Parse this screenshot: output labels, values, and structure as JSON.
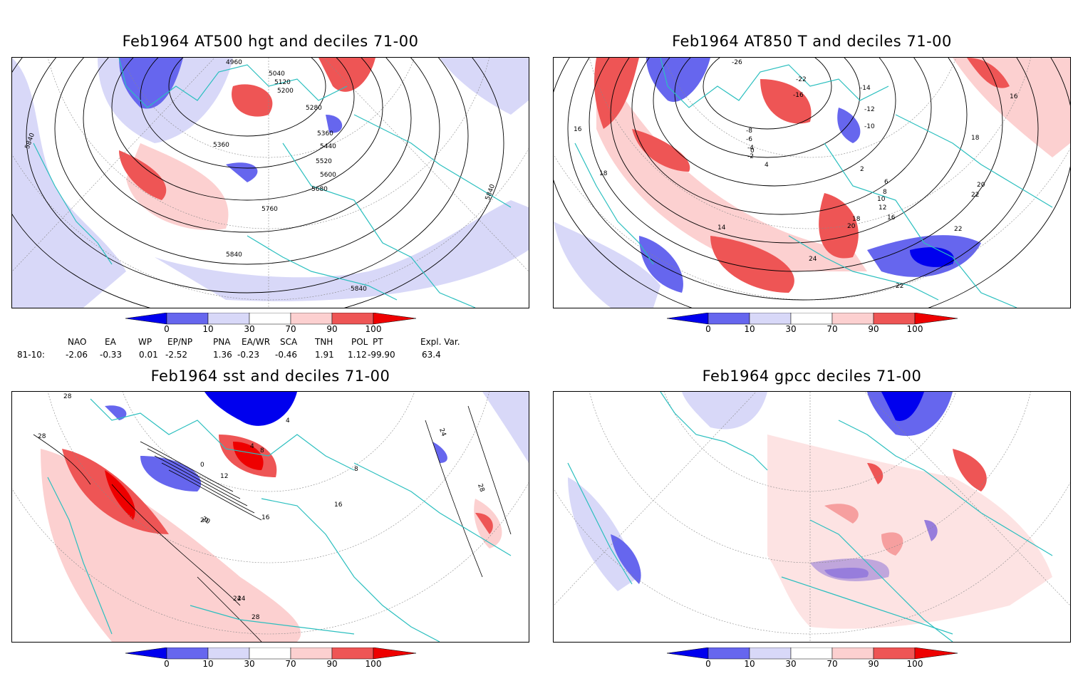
{
  "panels": [
    {
      "title": "Feb1964 AT500 hgt and deciles 71-00",
      "contour_labels": [
        "4960",
        "5040",
        "5120",
        "5200",
        "5280",
        "5360",
        "5440",
        "5520",
        "5600",
        "5680",
        "5760",
        "5840",
        "5840",
        "5840",
        "5840",
        "5360"
      ]
    },
    {
      "title": "Feb1964 AT850 T and deciles 71-00",
      "contour_labels": [
        "-26",
        "-22",
        "-16",
        "-14",
        "-12",
        "-10",
        "-8",
        "-6",
        "-4",
        "-2",
        "0",
        "2",
        "4",
        "6",
        "8",
        "10",
        "12",
        "14",
        "16",
        "18",
        "20",
        "22",
        "24",
        "16",
        "18",
        "16",
        "18",
        "22",
        "22",
        "20"
      ]
    },
    {
      "title": "Feb1964 sst and deciles 71-00",
      "contour_labels": [
        "28",
        "28",
        "24",
        "20",
        "16",
        "12",
        "8",
        "4",
        "0",
        "24",
        "28",
        "16",
        "20",
        "24",
        "28",
        "4",
        "8"
      ]
    },
    {
      "title": "Feb1964 gpcc deciles 71-00",
      "contour_labels": []
    }
  ],
  "colorbar": {
    "ticks": [
      "0",
      "10",
      "30",
      "70",
      "90",
      "100"
    ],
    "colors": [
      "#0000ee",
      "#6666ee",
      "#d8d8f8",
      "#ffffff",
      "#fcd0d0",
      "#ee5555",
      "#ee0000"
    ]
  },
  "indices": {
    "headers": [
      "NAO",
      "EA",
      "WP",
      "EP/NP",
      "PNA",
      "EA/WR",
      "SCA",
      "TNH",
      "POL",
      "PT",
      "Expl. Var."
    ],
    "row_label": "81-10:",
    "values": [
      "-2.06",
      "-0.33",
      "0.01",
      "-2.52",
      "1.36",
      "-0.23",
      "-0.46",
      "1.91",
      "1.12",
      "-99.90",
      "63.4"
    ]
  },
  "colors": {
    "coast": "#2bbfbf",
    "contour": "#000000",
    "grid": "#888888"
  }
}
